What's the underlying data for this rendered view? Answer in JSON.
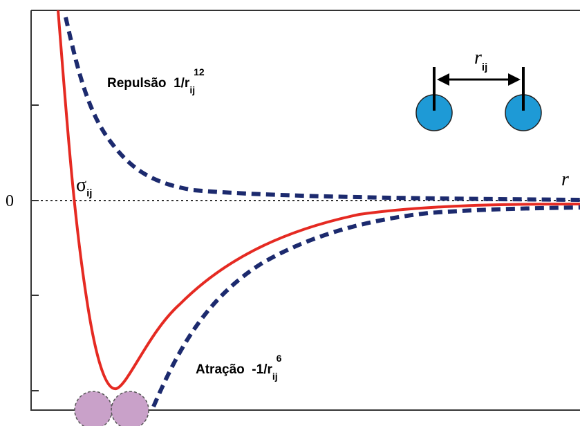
{
  "axis": {
    "zero_label": "0",
    "x_label": "r"
  },
  "labels": {
    "sigma": {
      "symbol": "σ",
      "subscript": "ij"
    },
    "repulsion": {
      "text": "Repulsão  1/r",
      "subscript": "ij",
      "superscript": "12"
    },
    "attraction": {
      "text": "Atração  -1/r",
      "subscript": "ij",
      "superscript": "6"
    },
    "distance": {
      "symbol": "r",
      "subscript": "ij"
    }
  }
}
